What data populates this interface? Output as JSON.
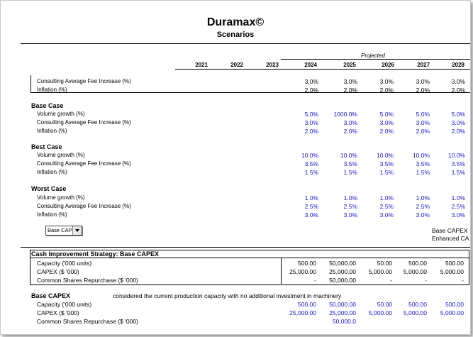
{
  "header": {
    "title": "Duramax©",
    "subtitle": "Scenarios"
  },
  "years": [
    "2021",
    "2022",
    "2023",
    "2024",
    "2025",
    "2026",
    "2027",
    "2028"
  ],
  "projected_label": "Projected",
  "top_rows": [
    {
      "label": "Consulting Average Fee Increase (%)",
      "values": [
        "3.0%",
        "3.0%",
        "3.0%",
        "3.0%",
        "3.0%"
      ]
    },
    {
      "label": "Inflation (%)",
      "values": [
        "2.0%",
        "2.0%",
        "2.0%",
        "2.0%",
        "2.0%"
      ]
    }
  ],
  "scenarios": [
    {
      "title": "Base Case",
      "rows": [
        {
          "label": "Volume growth (%)",
          "values": [
            "5.0%",
            "1000.0%",
            "5.0%",
            "5.0%",
            "5.0%"
          ]
        },
        {
          "label": "Consulting Average Fee Increase (%)",
          "values": [
            "3.0%",
            "3.0%",
            "3.0%",
            "3.0%",
            "3.0%"
          ]
        },
        {
          "label": "Inflation (%)",
          "values": [
            "2.0%",
            "2.0%",
            "2.0%",
            "2.0%",
            "2.0%"
          ]
        }
      ]
    },
    {
      "title": "Best Case",
      "rows": [
        {
          "label": "Volume growth (%)",
          "values": [
            "10.0%",
            "10.0%",
            "10.0%",
            "10.0%",
            "10.0%"
          ]
        },
        {
          "label": "Consulting Average Fee Increase (%)",
          "values": [
            "3.5%",
            "3.5%",
            "3.5%",
            "3.5%",
            "3.5%"
          ]
        },
        {
          "label": "Inflation (%)",
          "values": [
            "1.5%",
            "1.5%",
            "1.5%",
            "1.5%",
            "1.5%"
          ]
        }
      ]
    },
    {
      "title": "Worst Case",
      "rows": [
        {
          "label": "Volume growth (%)",
          "values": [
            "1.0%",
            "1.0%",
            "1.0%",
            "1.0%",
            "1.0%"
          ]
        },
        {
          "label": "Consulting Average Fee Increase (%)",
          "values": [
            "2.5%",
            "2.5%",
            "2.5%",
            "2.5%",
            "2.5%"
          ]
        },
        {
          "label": "Inflation (%)",
          "values": [
            "3.0%",
            "3.0%",
            "3.0%",
            "3.0%",
            "3.0%"
          ]
        }
      ]
    }
  ],
  "dropdown": {
    "value": "Base CAPE"
  },
  "capex_options": [
    "Base CAPEX",
    "Enhanced CA"
  ],
  "strategy": {
    "title": "Cash Improvement Strategy: Base CAPEX",
    "rows": [
      {
        "label": "Capacity ('000 units)",
        "values": [
          "500.00",
          "50,000.00",
          "50.00",
          "500.00",
          "500.00"
        ]
      },
      {
        "label": "CAPEX ($ '000)",
        "values": [
          "25,000.00",
          "25,000.00",
          "5,000.00",
          "5,000.00",
          "5,000.00"
        ]
      },
      {
        "label": "Common Shares Repurchase ($ '000)",
        "values": [
          "-",
          "50,000.00",
          "-",
          "-",
          "-"
        ]
      }
    ]
  },
  "base_capex": {
    "title": "Base CAPEX",
    "description": "considered the current production capacity with no additional investment in machinery",
    "rows": [
      {
        "label": "Capacity ('000 units)",
        "values": [
          "500.00",
          "50,000.00",
          "50.00",
          "500.00",
          "500.00"
        ]
      },
      {
        "label": "CAPEX ($ '000)",
        "values": [
          "25,000.00",
          "25,000.00",
          "5,000.00",
          "5,000.00",
          "5,000.00"
        ]
      },
      {
        "label": "Common Shares Repurchase ($ '000)",
        "values": [
          "",
          "50,000.0",
          "",
          "",
          ""
        ]
      }
    ]
  }
}
